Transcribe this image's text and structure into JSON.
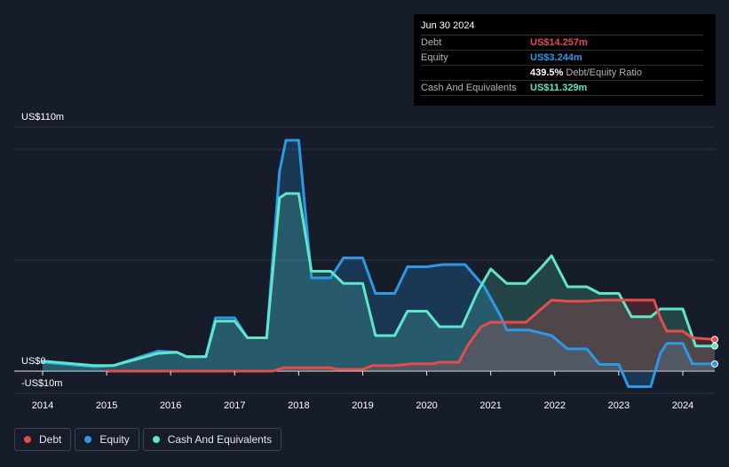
{
  "tooltip": {
    "date": "Jun 30 2024",
    "rows": [
      {
        "label": "Debt",
        "value": "US$14.257m",
        "color": "#e64c4c"
      },
      {
        "label": "Equity",
        "value": "US$3.244m",
        "color": "#2b9ae6"
      },
      {
        "label": "",
        "value": "439.5%",
        "suffix": "Debt/Equity Ratio",
        "color": "#ffffff"
      },
      {
        "label": "Cash And Equivalents",
        "value": "US$11.329m",
        "color": "#5fe6c8"
      }
    ]
  },
  "legend": [
    {
      "label": "Debt",
      "color": "#e64c4c"
    },
    {
      "label": "Equity",
      "color": "#2b9ae6"
    },
    {
      "label": "Cash And Equivalents",
      "color": "#5fe6c8"
    }
  ],
  "chart_data": {
    "type": "area",
    "y_tick_labels": [
      "US$110m",
      "US$0",
      "-US$10m"
    ],
    "ylim": [
      -10,
      110
    ],
    "xlim": [
      2014.0,
      2024.5
    ],
    "x_tick_labels": [
      "2014",
      "2015",
      "2016",
      "2017",
      "2018",
      "2019",
      "2020",
      "2021",
      "2022",
      "2023",
      "2024"
    ],
    "grid": true,
    "legend_position": "bottom-left",
    "series": [
      {
        "name": "Debt",
        "color": "#e64c4c",
        "points": [
          [
            2015.0,
            0
          ],
          [
            2017.6,
            0
          ],
          [
            2017.75,
            1.5
          ],
          [
            2018.5,
            1.5
          ],
          [
            2018.6,
            0.8
          ],
          [
            2019.0,
            0.8
          ],
          [
            2019.15,
            2.5
          ],
          [
            2019.5,
            2.5
          ],
          [
            2019.75,
            3.3
          ],
          [
            2020.1,
            3.3
          ],
          [
            2020.2,
            4
          ],
          [
            2020.5,
            4
          ],
          [
            2020.65,
            12
          ],
          [
            2020.85,
            20
          ],
          [
            2021.0,
            22
          ],
          [
            2021.25,
            22
          ],
          [
            2021.55,
            22
          ],
          [
            2021.75,
            27
          ],
          [
            2021.95,
            32
          ],
          [
            2022.2,
            31.5
          ],
          [
            2022.5,
            31.5
          ],
          [
            2022.75,
            32
          ],
          [
            2023.0,
            32
          ],
          [
            2023.2,
            32
          ],
          [
            2023.55,
            32
          ],
          [
            2023.65,
            24
          ],
          [
            2023.75,
            18
          ],
          [
            2024.0,
            18
          ],
          [
            2024.15,
            15
          ],
          [
            2024.5,
            14.257
          ]
        ]
      },
      {
        "name": "Equity",
        "color": "#2b9ae6",
        "points": [
          [
            2014.0,
            4
          ],
          [
            2014.8,
            2
          ],
          [
            2015.1,
            2.5
          ],
          [
            2015.8,
            9
          ],
          [
            2016.1,
            8.5
          ],
          [
            2016.25,
            6.5
          ],
          [
            2016.55,
            6.5
          ],
          [
            2016.7,
            24
          ],
          [
            2017.0,
            24
          ],
          [
            2017.2,
            15
          ],
          [
            2017.5,
            15
          ],
          [
            2017.7,
            90
          ],
          [
            2017.8,
            104
          ],
          [
            2018.0,
            104
          ],
          [
            2018.2,
            42
          ],
          [
            2018.5,
            42
          ],
          [
            2018.7,
            51
          ],
          [
            2019.0,
            51
          ],
          [
            2019.2,
            35
          ],
          [
            2019.5,
            35
          ],
          [
            2019.7,
            47
          ],
          [
            2020.0,
            47
          ],
          [
            2020.25,
            48
          ],
          [
            2020.6,
            48
          ],
          [
            2020.9,
            38
          ],
          [
            2021.15,
            25
          ],
          [
            2021.25,
            18.5
          ],
          [
            2021.6,
            18.5
          ],
          [
            2021.95,
            16
          ],
          [
            2022.2,
            10
          ],
          [
            2022.5,
            10
          ],
          [
            2022.7,
            3
          ],
          [
            2023.0,
            3
          ],
          [
            2023.15,
            -7
          ],
          [
            2023.5,
            -7
          ],
          [
            2023.65,
            8
          ],
          [
            2023.75,
            12.5
          ],
          [
            2024.0,
            12.5
          ],
          [
            2024.15,
            3.3
          ],
          [
            2024.5,
            3.244
          ]
        ]
      },
      {
        "name": "Cash And Equivalents",
        "color": "#5fe6c8",
        "points": [
          [
            2014.0,
            4.5
          ],
          [
            2014.8,
            2.5
          ],
          [
            2015.1,
            2.5
          ],
          [
            2015.8,
            8
          ],
          [
            2016.1,
            8.5
          ],
          [
            2016.25,
            6.5
          ],
          [
            2016.55,
            6.5
          ],
          [
            2016.7,
            22.5
          ],
          [
            2017.0,
            22.5
          ],
          [
            2017.2,
            15
          ],
          [
            2017.5,
            15
          ],
          [
            2017.7,
            78
          ],
          [
            2017.8,
            80
          ],
          [
            2018.0,
            80
          ],
          [
            2018.2,
            45
          ],
          [
            2018.5,
            45
          ],
          [
            2018.7,
            39.5
          ],
          [
            2019.0,
            39.5
          ],
          [
            2019.2,
            16
          ],
          [
            2019.5,
            16
          ],
          [
            2019.7,
            27
          ],
          [
            2020.0,
            27
          ],
          [
            2020.2,
            20
          ],
          [
            2020.55,
            20
          ],
          [
            2020.8,
            36
          ],
          [
            2021.0,
            46
          ],
          [
            2021.25,
            39.5
          ],
          [
            2021.55,
            39.5
          ],
          [
            2021.8,
            47
          ],
          [
            2021.95,
            52
          ],
          [
            2022.2,
            38
          ],
          [
            2022.5,
            38
          ],
          [
            2022.7,
            35
          ],
          [
            2023.0,
            35
          ],
          [
            2023.2,
            24.5
          ],
          [
            2023.5,
            24.5
          ],
          [
            2023.65,
            28
          ],
          [
            2024.0,
            28
          ],
          [
            2024.2,
            11.329
          ],
          [
            2024.5,
            11.329
          ]
        ]
      }
    ]
  }
}
